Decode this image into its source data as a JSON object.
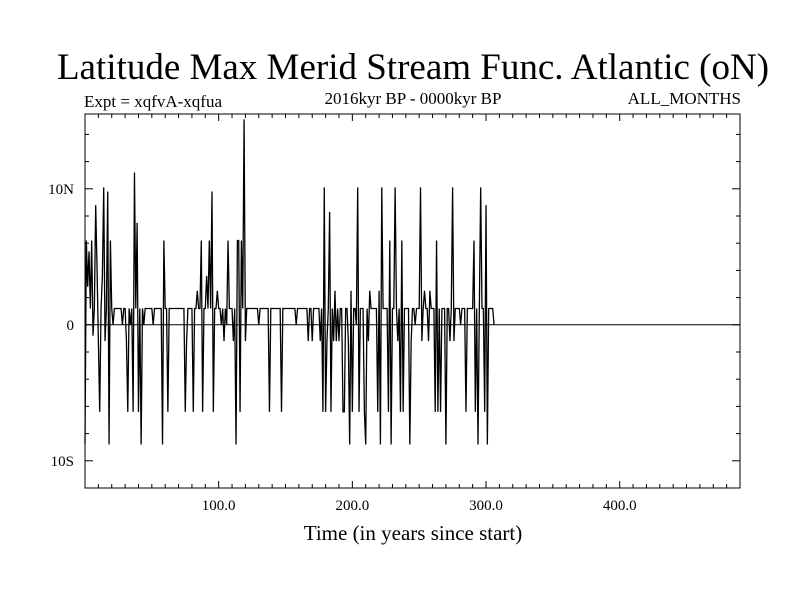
{
  "chart_data": {
    "type": "line",
    "title": "Latitude Max Merid Stream Func. Atlantic (oN)",
    "subtitle_left": "Expt = xqfvA-xqfua",
    "subtitle_center": "2016kyr BP - 0000kyr BP",
    "subtitle_right": "ALL_MONTHS",
    "xlabel": "Time (in years since start)",
    "ylabel": "",
    "xlim": [
      0,
      490
    ],
    "ylim": [
      -12,
      15.5
    ],
    "x_ticks": [
      100,
      200,
      300,
      400
    ],
    "x_tick_labels": [
      "100.0",
      "200.0",
      "300.0",
      "400.0"
    ],
    "y_ticks": [
      -10,
      0,
      10
    ],
    "y_tick_labels": [
      "10S",
      "0",
      "10N"
    ],
    "grid": false,
    "zero_line": true,
    "series": [
      {
        "x_start": 0,
        "x_step": 1,
        "values": [
          -8.8,
          6.2,
          2.8,
          5.4,
          1.2,
          6.2,
          -0.8,
          1.2,
          8.8,
          4.2,
          -1.2,
          -6.4,
          1.2,
          3.6,
          10.1,
          -1.2,
          1.2,
          9.8,
          -8.8,
          6.2,
          1.2,
          0,
          1.2,
          1.2,
          1.2,
          1.2,
          1.2,
          1.2,
          0,
          1.2,
          1.2,
          -1.2,
          -6.4,
          1.2,
          0,
          1.2,
          -6.4,
          11.2,
          1.2,
          7.5,
          -6.4,
          1.2,
          -8.8,
          1.2,
          0,
          1.2,
          1.2,
          1.2,
          1.2,
          1.2,
          1.2,
          0,
          1.2,
          1.2,
          1.2,
          1.2,
          1.2,
          1.2,
          -8.8,
          6.2,
          1.2,
          1.2,
          -6.4,
          1.2,
          1.2,
          1.2,
          1.2,
          1.2,
          1.2,
          1.2,
          1.2,
          1.2,
          1.2,
          1.2,
          1.2,
          -6.4,
          -1.2,
          1.2,
          1.2,
          1.2,
          1.2,
          -6.4,
          1.2,
          1.2,
          2.5,
          1.2,
          1.2,
          6.2,
          -6.4,
          1.2,
          1.2,
          3.6,
          1.2,
          6.2,
          1.2,
          9.8,
          -6.4,
          1.2,
          1.2,
          2.5,
          1.2,
          1.2,
          0,
          1.2,
          -1.2,
          1.2,
          0,
          6.2,
          1.2,
          1.2,
          1.2,
          -1.2,
          1.2,
          -8.8,
          6.2,
          6.2,
          -6.4,
          6.2,
          1.2,
          15.1,
          -1.2,
          1.2,
          1.2,
          1.2,
          1.2,
          1.2,
          1.2,
          1.2,
          1.2,
          1.2,
          0,
          1.2,
          1.2,
          1.2,
          1.2,
          1.2,
          1.2,
          1.2,
          -6.4,
          1.2,
          1.2,
          1.2,
          1.2,
          1.2,
          1.2,
          1.2,
          1.2,
          -6.4,
          1.2,
          1.2,
          1.2,
          1.2,
          1.2,
          1.2,
          1.2,
          1.2,
          1.2,
          1.2,
          0,
          1.2,
          1.2,
          1.2,
          1.2,
          1.2,
          1.2,
          1.2,
          1.2,
          -1.2,
          1.2,
          1.2,
          -1.2,
          1.2,
          1.2,
          1.2,
          1.2,
          1.2,
          -1.2,
          1.2,
          -6.4,
          10.1,
          -6.4,
          -1.2,
          1.2,
          8.3,
          -6.4,
          1.2,
          -1.2,
          2.5,
          -1.2,
          1.2,
          -1.2,
          1.2,
          1.2,
          -6.4,
          -6.4,
          1.2,
          1.2,
          -1.2,
          -8.8,
          2.5,
          -6.4,
          1.2,
          1.2,
          0,
          10.1,
          -6.4,
          1.2,
          1.2,
          1.2,
          -6.4,
          -8.8,
          1.2,
          -1.2,
          2.5,
          1.2,
          1.2,
          1.2,
          1.2,
          1.2,
          -6.4,
          2.5,
          -8.8,
          10.1,
          1.2,
          1.2,
          1.2,
          1.2,
          -6.4,
          6.2,
          -8.8,
          1.2,
          1.2,
          10.1,
          1.2,
          -1.2,
          1.2,
          -6.4,
          6.2,
          -6.4,
          1.2,
          1.2,
          1.2,
          1.2,
          -8.8,
          -1.2,
          1.2,
          1.2,
          0,
          1.2,
          1.2,
          1.2,
          10.1,
          -1.2,
          1.2,
          2.5,
          1.2,
          1.2,
          -1.2,
          2.5,
          1.2,
          1.2,
          1.2,
          -6.4,
          6.2,
          -6.4,
          1.2,
          -6.4,
          1.2,
          1.2,
          1.2,
          -8.8,
          1.2,
          1.2,
          -1.2,
          1.2,
          10.1,
          -1.2,
          1.2,
          1.2,
          1.2,
          1.2,
          0,
          1.2,
          1.2,
          1.2,
          -6.4,
          1.2,
          1.2,
          1.2,
          1.2,
          1.2,
          6.2,
          -6.4,
          1.2,
          -8.8,
          1.2,
          10.1,
          1.2,
          1.2,
          -6.4,
          8.8,
          -8.8,
          1.2,
          1.2,
          1.2,
          1.2,
          0
        ],
        "color": "#000000"
      }
    ]
  }
}
